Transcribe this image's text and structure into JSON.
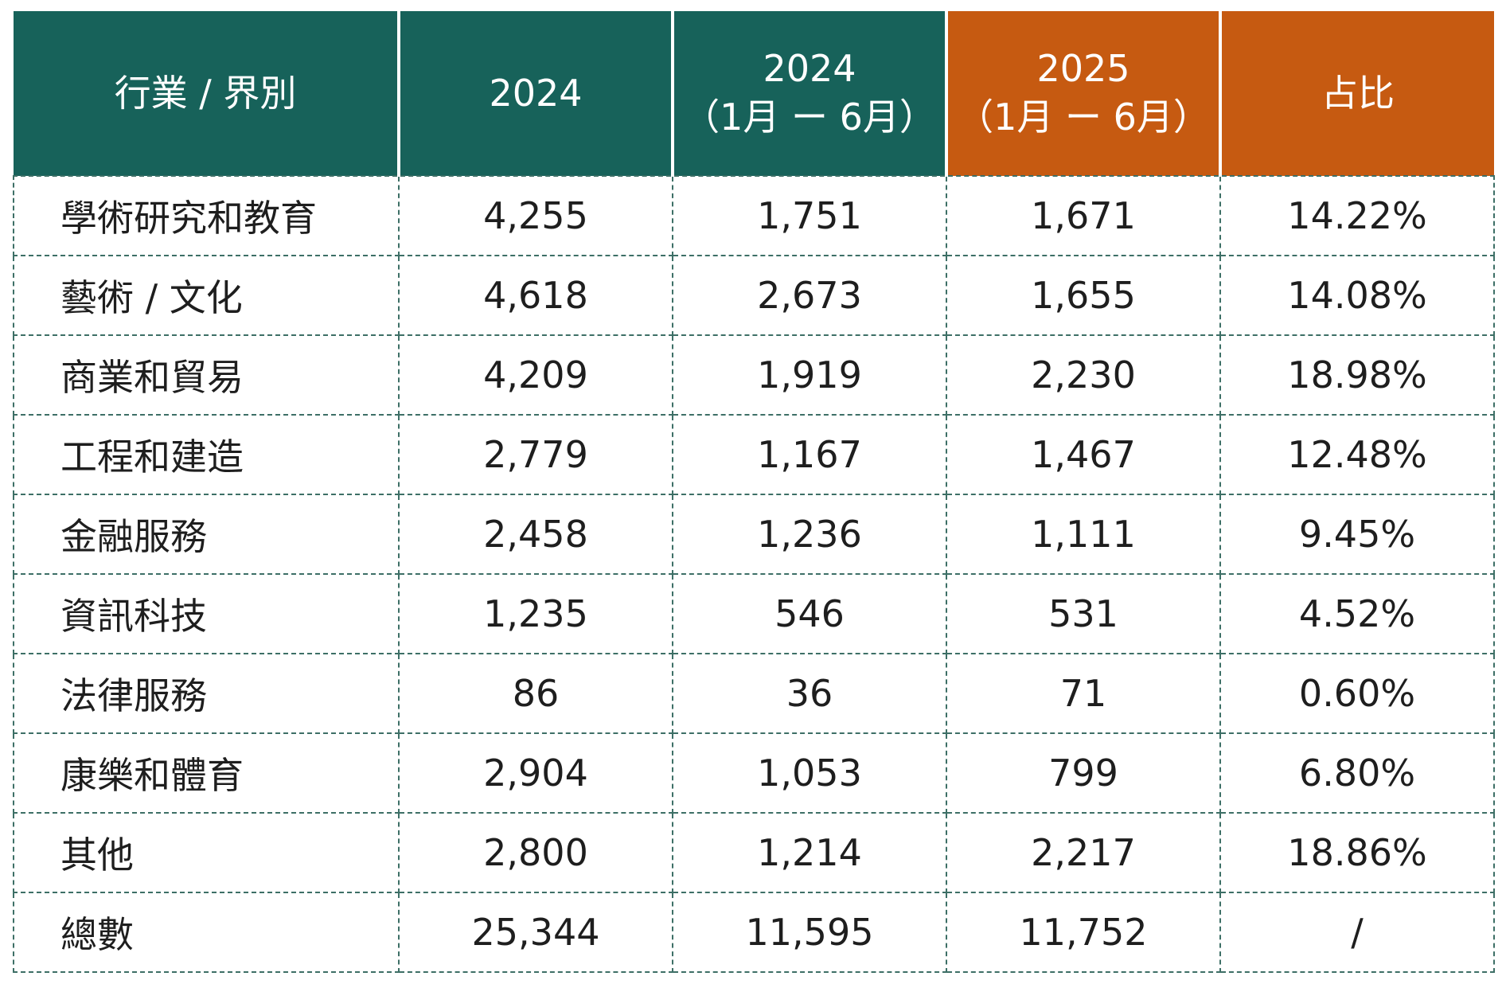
{
  "table": {
    "headers": [
      {
        "lines": [
          "行業 / 界別"
        ],
        "color": "#17625a"
      },
      {
        "lines": [
          "2024"
        ],
        "color": "#17625a"
      },
      {
        "lines": [
          "2024",
          "（1月 ー 6月）"
        ],
        "color": "#17625a"
      },
      {
        "lines": [
          "2025",
          "（1月 ー 6月）"
        ],
        "color": "#c65a11"
      },
      {
        "lines": [
          "占比"
        ],
        "color": "#c65a11"
      }
    ],
    "rows": [
      [
        "學術研究和教育",
        "4,255",
        "1,751",
        "1,671",
        "14.22%"
      ],
      [
        "藝術 / 文化",
        "4,618",
        "2,673",
        "1,655",
        "14.08%"
      ],
      [
        "商業和貿易",
        "4,209",
        "1,919",
        "2,230",
        "18.98%"
      ],
      [
        "工程和建造",
        "2,779",
        "1,167",
        "1,467",
        "12.48%"
      ],
      [
        "金融服務",
        "2,458",
        "1,236",
        "1,111",
        "9.45%"
      ],
      [
        "資訊科技",
        "1,235",
        "546",
        "531",
        "4.52%"
      ],
      [
        "法律服務",
        "86",
        "36",
        "71",
        "0.60%"
      ],
      [
        "康樂和體育",
        "2,904",
        "1,053",
        "799",
        "6.80%"
      ],
      [
        "其他",
        "2,800",
        "1,214",
        "2,217",
        "18.86%"
      ],
      [
        "總數",
        "25,344",
        "11,595",
        "11,752",
        "/"
      ]
    ]
  }
}
